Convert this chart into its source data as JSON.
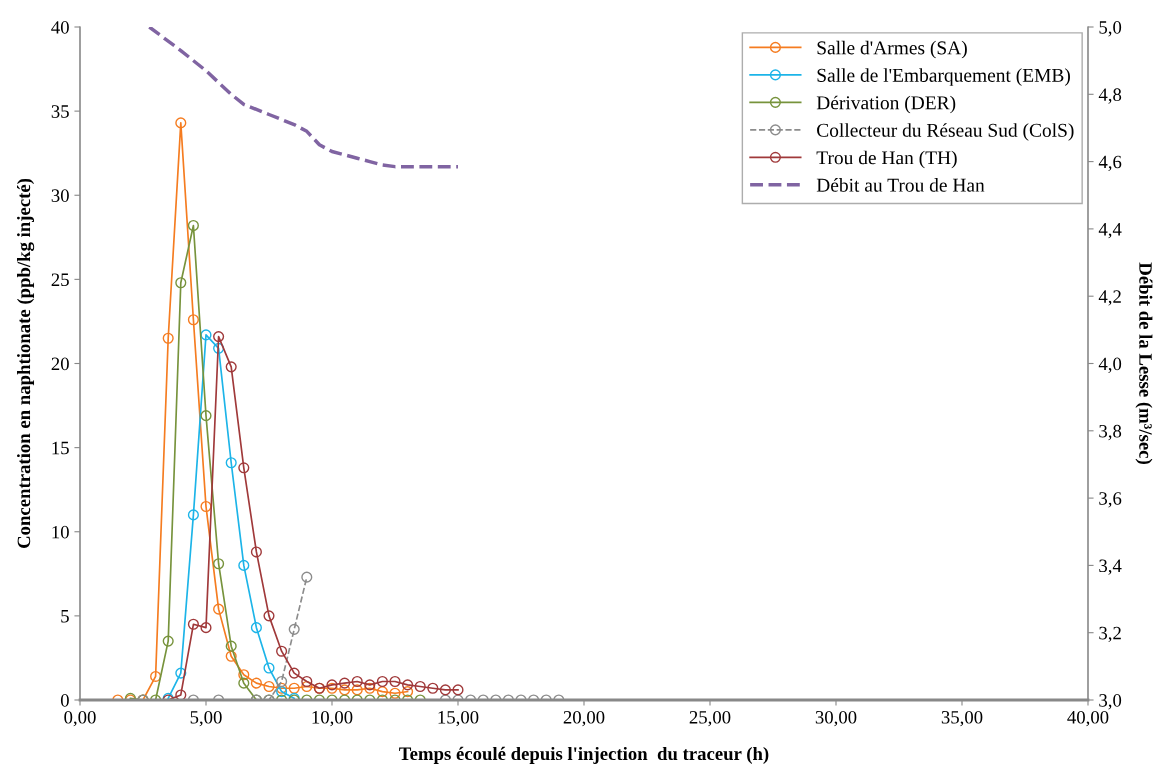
{
  "chart_data": {
    "type": "line",
    "xlabel": "Temps écoulé depuis l'injection  du traceur (h)",
    "ylabel": "Concentration en naphtionate (ppb/kg injecté)",
    "y2label": "Débit de la Lesse (m³/sec)",
    "xlim": [
      0,
      40
    ],
    "xticks": [
      {
        "value": 0,
        "label": "0,00"
      },
      {
        "value": 5,
        "label": "5,00"
      },
      {
        "value": 10,
        "label": "10,00"
      },
      {
        "value": 15,
        "label": "15,00"
      },
      {
        "value": 20,
        "label": "20,00"
      },
      {
        "value": 25,
        "label": "25,00"
      },
      {
        "value": 30,
        "label": "30,00"
      },
      {
        "value": 35,
        "label": "35,00"
      },
      {
        "value": 40,
        "label": "40,00"
      }
    ],
    "ylim": [
      0,
      40
    ],
    "yticks": [
      0,
      5,
      10,
      15,
      20,
      25,
      30,
      35,
      40
    ],
    "y2lim": [
      3.0,
      5.0
    ],
    "y2ticks": [
      {
        "value": 3.0,
        "label": "3,0"
      },
      {
        "value": 3.2,
        "label": "3,2"
      },
      {
        "value": 3.4,
        "label": "3,4"
      },
      {
        "value": 3.6,
        "label": "3,6"
      },
      {
        "value": 3.8,
        "label": "3,8"
      },
      {
        "value": 4.0,
        "label": "4,0"
      },
      {
        "value": 4.2,
        "label": "4,2"
      },
      {
        "value": 4.4,
        "label": "4,4"
      },
      {
        "value": 4.6,
        "label": "4,6"
      },
      {
        "value": 4.8,
        "label": "4,8"
      },
      {
        "value": 5.0,
        "label": "5,0"
      }
    ],
    "grid": false,
    "legend": "top right",
    "marker": "circle",
    "line_style": "solid",
    "series": [
      {
        "name": "Salle d'Armes (SA)",
        "color": "#f57c20",
        "x": [
          1.5,
          2.0,
          2.5,
          3.0,
          3.5,
          4.0,
          4.5,
          5.0,
          5.5,
          6.0,
          6.5,
          7.0,
          7.5,
          8.0,
          8.5,
          9.0,
          9.5,
          10.0,
          10.5,
          11.0,
          11.5,
          12.0,
          12.5,
          13.0
        ],
        "values": [
          0,
          0,
          0,
          1.4,
          21.5,
          34.3,
          22.6,
          11.5,
          5.4,
          2.6,
          1.5,
          1.0,
          0.8,
          0.7,
          0.7,
          0.8,
          0.7,
          0.7,
          0.6,
          0.6,
          0.7,
          0.5,
          0.4,
          0.5
        ]
      },
      {
        "name": "Salle de l'Embarquement (EMB)",
        "color": "#1cb4e8",
        "x": [
          3.5,
          4.0,
          4.5,
          5.0,
          5.5,
          6.0,
          6.5,
          7.0,
          7.5,
          8.0,
          8.5
        ],
        "values": [
          0.1,
          1.6,
          11.0,
          21.7,
          20.9,
          14.1,
          8.0,
          4.3,
          1.9,
          0.5,
          0.1
        ]
      },
      {
        "name": "Dérivation (DER)",
        "color": "#77933c",
        "x": [
          2.0,
          2.5,
          3.0,
          3.5,
          4.0,
          4.5,
          5.0,
          5.5,
          6.0,
          6.5,
          7.0,
          7.5,
          8.0,
          8.5,
          9.0,
          9.5,
          10.0,
          10.5,
          11.0,
          11.5,
          12.0,
          12.5,
          13.0,
          13.5
        ],
        "values": [
          0.1,
          0,
          0,
          3.5,
          24.8,
          28.2,
          16.9,
          8.1,
          3.2,
          1.0,
          0,
          0,
          0,
          0,
          0,
          0,
          0,
          0,
          0,
          0,
          0,
          0,
          0,
          0
        ]
      },
      {
        "name": "Collecteur du Réseau Sud (ColS)",
        "color": "#8c8c8c",
        "line_style": "dashed",
        "x": [
          2.5,
          4.5,
          5.5,
          7.0,
          7.5,
          8.0,
          8.5,
          9.0,
          12.0,
          14.5,
          15.0,
          15.5,
          16.0,
          16.5,
          17.0,
          17.5,
          18.0,
          18.5,
          19.0
        ],
        "values": [
          0,
          0,
          0,
          0,
          0,
          1.1,
          4.2,
          7.3,
          null,
          0,
          0,
          0,
          0,
          0,
          0,
          0,
          0,
          0,
          0
        ]
      },
      {
        "name": "Trou de Han (TH)",
        "color": "#a0393a",
        "x": [
          3.5,
          4.0,
          4.5,
          5.0,
          5.5,
          6.0,
          6.5,
          7.0,
          7.5,
          8.0,
          8.5,
          9.0,
          9.5,
          10.0,
          10.5,
          11.0,
          11.5,
          12.0,
          12.5,
          13.0,
          13.5,
          14.0,
          14.5,
          15.0
        ],
        "values": [
          0,
          0.3,
          4.5,
          4.3,
          21.6,
          19.8,
          13.8,
          8.8,
          5.0,
          2.9,
          1.6,
          1.1,
          0.7,
          0.9,
          1.0,
          1.1,
          0.9,
          1.1,
          1.1,
          0.9,
          0.8,
          0.7,
          0.6,
          0.6
        ]
      },
      {
        "name": "Débit au Trou de Han",
        "color": "#8064a2",
        "axis": "y2",
        "marker": "none",
        "line_style": "dashed",
        "x": [
          2.75,
          4.0,
          5.0,
          6.0,
          6.5,
          7.5,
          8.5,
          9.0,
          9.5,
          10.0,
          11.0,
          11.5,
          12.0,
          12.5,
          15.0
        ],
        "values": [
          5.0,
          4.93,
          4.87,
          4.8,
          4.77,
          4.74,
          4.71,
          4.69,
          4.65,
          4.63,
          4.61,
          4.6,
          4.59,
          4.585,
          4.585
        ]
      }
    ]
  }
}
